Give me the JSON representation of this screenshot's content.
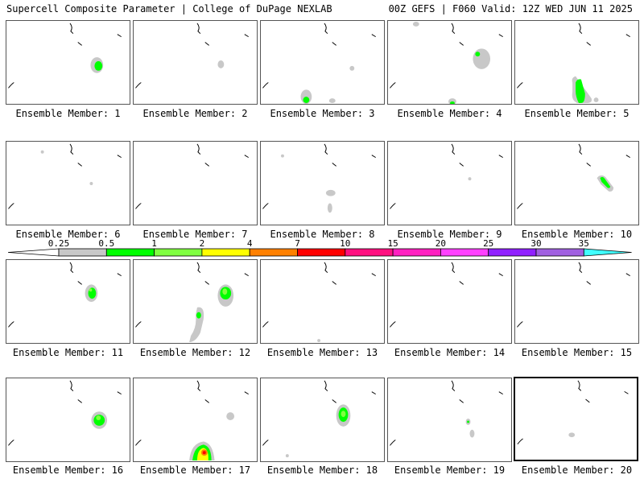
{
  "header": {
    "title_left": "Supercell Composite Parameter | College of DuPage NEXLAB",
    "title_right": "00Z GEFS | F060 Valid: 12Z WED JUN 11 2025"
  },
  "colors": {
    "0.25": "#c8c8c8",
    "0.5": "#00ff00",
    "1": "#80ff40",
    "2": "#ffff00",
    "4": "#ff8000",
    "7": "#ff0000",
    "10": "#ff1080",
    "15": "#ff20c0",
    "20": "#ff40ff",
    "25": "#9020ff",
    "30": "#a060e0",
    "35": "#40ffff"
  },
  "colorbar": {
    "ticks": [
      "0.25",
      "0.5",
      "1",
      "2",
      "4",
      "7",
      "10",
      "15",
      "20",
      "25",
      "30",
      "35"
    ]
  },
  "panels": [
    {
      "label": "Ensemble Member: 1"
    },
    {
      "label": "Ensemble Member: 2"
    },
    {
      "label": "Ensemble Member: 3"
    },
    {
      "label": "Ensemble Member: 4"
    },
    {
      "label": "Ensemble Member: 5"
    },
    {
      "label": "Ensemble Member: 6"
    },
    {
      "label": "Ensemble Member: 7"
    },
    {
      "label": "Ensemble Member: 8"
    },
    {
      "label": "Ensemble Member: 9"
    },
    {
      "label": "Ensemble Member: 10"
    },
    {
      "label": "Ensemble Member: 11"
    },
    {
      "label": "Ensemble Member: 12"
    },
    {
      "label": "Ensemble Member: 13"
    },
    {
      "label": "Ensemble Member: 14"
    },
    {
      "label": "Ensemble Member: 15"
    },
    {
      "label": "Ensemble Member: 16"
    },
    {
      "label": "Ensemble Member: 17"
    },
    {
      "label": "Ensemble Member: 18"
    },
    {
      "label": "Ensemble Member: 19"
    },
    {
      "label": "Ensemble Member: 20"
    }
  ]
}
